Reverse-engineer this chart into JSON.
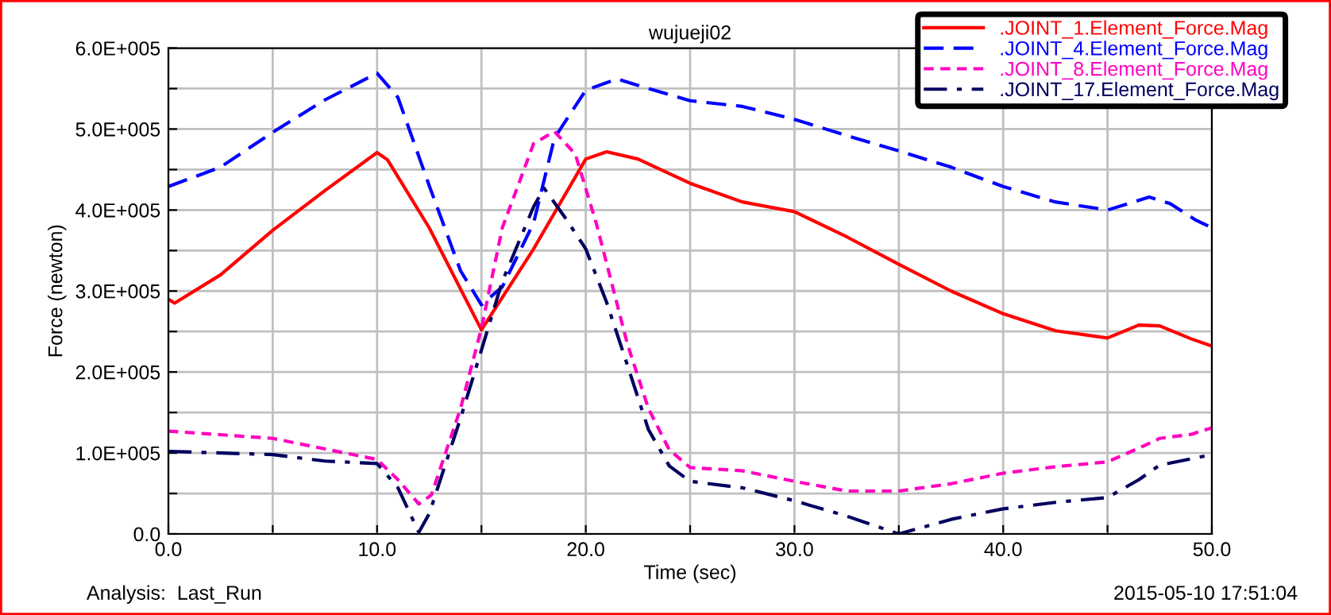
{
  "chart_data": {
    "type": "line",
    "title": "wujueji02",
    "xlabel": "Time (sec)",
    "ylabel": "Force (newton)",
    "xlim": [
      0,
      50
    ],
    "ylim": [
      0,
      600000
    ],
    "xticks": [
      {
        "value": 0,
        "label": "0.0"
      },
      {
        "value": 5,
        "label": null
      },
      {
        "value": 10,
        "label": "10.0"
      },
      {
        "value": 15,
        "label": null
      },
      {
        "value": 20,
        "label": "20.0"
      },
      {
        "value": 25,
        "label": null
      },
      {
        "value": 30,
        "label": "30.0"
      },
      {
        "value": 35,
        "label": null
      },
      {
        "value": 40,
        "label": "40.0"
      },
      {
        "value": 45,
        "label": null
      },
      {
        "value": 50,
        "label": "50.0"
      }
    ],
    "yticks": [
      {
        "value": 0,
        "label": "0.0"
      },
      {
        "value": 50000,
        "label": null
      },
      {
        "value": 100000,
        "label": "1.0E+005"
      },
      {
        "value": 150000,
        "label": null
      },
      {
        "value": 200000,
        "label": "2.0E+005"
      },
      {
        "value": 250000,
        "label": null
      },
      {
        "value": 300000,
        "label": "3.0E+005"
      },
      {
        "value": 350000,
        "label": null
      },
      {
        "value": 400000,
        "label": "4.0E+005"
      },
      {
        "value": 450000,
        "label": null
      },
      {
        "value": 500000,
        "label": "5.0E+005"
      },
      {
        "value": 550000,
        "label": null
      },
      {
        "value": 600000,
        "label": "6.0E+005"
      }
    ],
    "grid": true,
    "legend": "top right",
    "marker": "none",
    "annotations": [
      "Analysis:  Last_Run",
      "2015-05-10 17:51:04"
    ],
    "series": [
      {
        "name": ".JOINT_1.Element_Force.Mag",
        "color": "#ff0000",
        "line_style": "solid",
        "x": [
          0,
          0.3,
          2.5,
          5,
          7.5,
          10,
          10.5,
          12.5,
          15,
          17.5,
          20,
          21,
          22.5,
          25,
          27.5,
          30,
          32.5,
          35,
          37.5,
          40,
          42.5,
          45,
          46.5,
          47.5,
          49,
          50
        ],
        "values": [
          290000,
          285000,
          320000,
          375000,
          424000,
          471000,
          462000,
          378000,
          252000,
          352000,
          463000,
          472000,
          463000,
          433000,
          410000,
          398000,
          367000,
          333000,
          300000,
          272000,
          251000,
          242000,
          258000,
          257000,
          241000,
          232000
        ]
      },
      {
        "name": ".JOINT_4.Element_Force.Mag",
        "color": "#0000ff",
        "line_style": "dashed",
        "x": [
          0,
          2.5,
          5,
          7.5,
          10,
          11,
          12.5,
          14,
          15,
          16,
          17.5,
          18.5,
          20,
          21.5,
          22.5,
          25,
          27.5,
          30,
          32.5,
          35,
          37.5,
          40,
          42.5,
          45,
          46,
          47,
          48,
          49.2,
          50
        ],
        "values": [
          429000,
          453000,
          496000,
          536000,
          569000,
          539000,
          430000,
          325000,
          283000,
          305000,
          384000,
          489000,
          548000,
          562000,
          554000,
          535000,
          528000,
          512000,
          492000,
          473000,
          453000,
          429000,
          410000,
          400000,
          408000,
          416000,
          408000,
          388000,
          378000
        ]
      },
      {
        "name": ".JOINT_8.Element_Force.Mag",
        "color": "#ff00c0",
        "line_style": "dotted",
        "x": [
          0,
          5,
          7.5,
          10,
          11,
          12,
          12.6,
          14,
          15,
          16,
          17.5,
          18.5,
          19.5,
          20.5,
          22,
          23,
          24,
          25,
          27.5,
          30,
          32.5,
          35,
          37.5,
          40,
          42.5,
          45,
          46.5,
          47.5,
          49,
          50
        ],
        "values": [
          127000,
          118000,
          105000,
          92000,
          67000,
          37000,
          48000,
          155000,
          254000,
          378000,
          482000,
          497000,
          469000,
          384000,
          234000,
          155000,
          104000,
          82000,
          78000,
          65000,
          53000,
          53000,
          62000,
          75000,
          83000,
          89000,
          106000,
          118000,
          123000,
          131000
        ]
      },
      {
        "name": ".JOINT_17.Element_Force.Mag",
        "color": "#000060",
        "line_style": "dashdot",
        "x": [
          0,
          5,
          7.5,
          10,
          11,
          12,
          12.5,
          14,
          15,
          16,
          17.5,
          18,
          19,
          20,
          21,
          22,
          23,
          24,
          25,
          27.5,
          30,
          32.5,
          35,
          37.5,
          40,
          42.5,
          45,
          46.5,
          47.5,
          50
        ],
        "values": [
          102000,
          98000,
          90000,
          87000,
          57000,
          2000,
          25000,
          143000,
          227000,
          312000,
          404000,
          427000,
          391000,
          352000,
          286000,
          208000,
          129000,
          84000,
          65000,
          57000,
          41000,
          22000,
          0,
          18000,
          31000,
          39000,
          45000,
          67000,
          85000,
          98000
        ]
      }
    ]
  }
}
